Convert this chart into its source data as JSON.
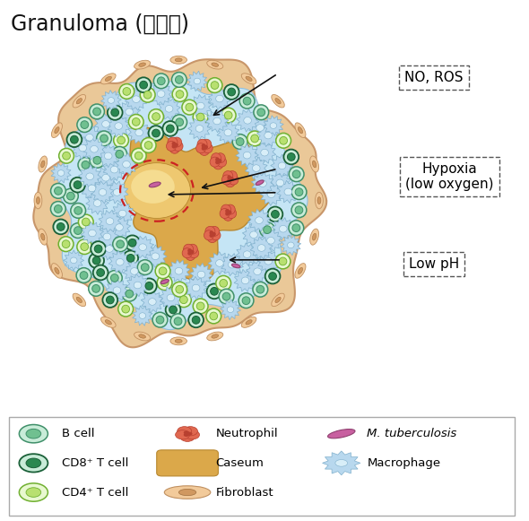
{
  "title": "Granuloma (육아종)",
  "title_fontsize": 17,
  "bg_color": "#ffffff",
  "outer_shell_color": "#EAC898",
  "outer_shell_edge": "#C8966A",
  "macrophage_fill": "#B8D8EE",
  "macrophage_edge": "#80B0CC",
  "macrophage_inner": "#D8EEF8",
  "bcell_fill": "#70C090",
  "bcell_edge": "#40906A",
  "bcell_inner": "#C8ECD8",
  "cd8_fill": "#2A8850",
  "cd8_edge": "#1A6038",
  "cd4_fill": "#B8E070",
  "cd4_edge": "#70B030",
  "neutrophil_fill": "#E06850",
  "neutrophil_edge": "#B84030",
  "caseum_fill": "#DBA84A",
  "caseum_edge": "#B88830",
  "mtb_fill": "#C860A0",
  "mtb_edge": "#904070",
  "label_no_ros": "NO, ROS",
  "label_hypoxia": "Hypoxia\n(low oxygen)",
  "label_low_ph": "Low pH",
  "arrow_color": "#111111",
  "dashed_circle_color": "#CC2222"
}
